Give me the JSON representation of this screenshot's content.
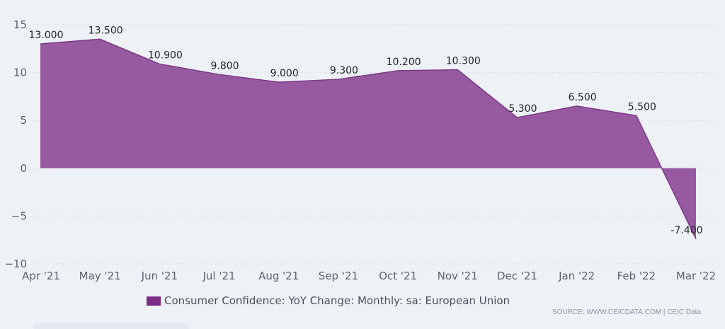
{
  "chart_data": {
    "type": "area",
    "categories": [
      "Apr '21",
      "May '21",
      "Jun '21",
      "Jul '21",
      "Aug '21",
      "Sep '21",
      "Oct '21",
      "Nov '21",
      "Dec '21",
      "Jan '22",
      "Feb '22",
      "Mar '22"
    ],
    "series": [
      {
        "name": "Consumer Confidence: YoY Change: Monthly: sa: European Union",
        "values": [
          13.0,
          13.5,
          10.9,
          9.8,
          9.0,
          9.3,
          10.2,
          10.3,
          5.3,
          6.5,
          5.5,
          -7.4
        ],
        "labels": [
          "13.000",
          "13.500",
          "10.900",
          "9.800",
          "9.000",
          "9.300",
          "10.200",
          "10.300",
          "5.300",
          "6.500",
          "5.500",
          "-7.400"
        ]
      }
    ],
    "yticks": [
      "15",
      "10",
      "5",
      "0",
      "−5",
      "−10"
    ],
    "ylim": [
      -10,
      15
    ],
    "grid": true,
    "legend_position": "bottom"
  },
  "colors": {
    "area_fill": "#975aa0",
    "line": "#7b3a86",
    "legend_swatch": "#7b2d85"
  },
  "legend": {
    "label": "Consumer Confidence: YoY Change: Monthly: sa: European Union"
  },
  "source": "SOURCE: WWW.CEICDATA.COM | CEIC Data"
}
